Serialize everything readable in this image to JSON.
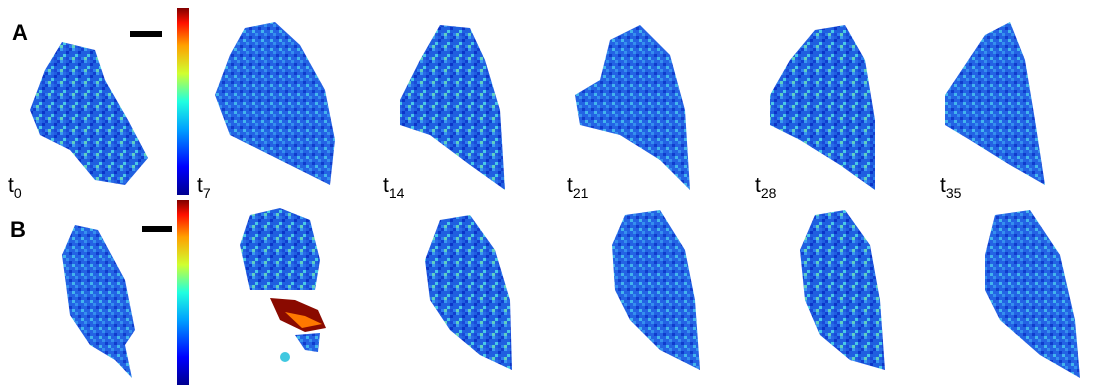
{
  "panels": [
    {
      "label": "A"
    },
    {
      "label": "B"
    }
  ],
  "time_labels": [
    {
      "base": "t",
      "sub": "0"
    },
    {
      "base": "t",
      "sub": "7"
    },
    {
      "base": "t",
      "sub": "14"
    },
    {
      "base": "t",
      "sub": "21"
    },
    {
      "base": "t",
      "sub": "28"
    },
    {
      "base": "t",
      "sub": "35"
    }
  ]
}
